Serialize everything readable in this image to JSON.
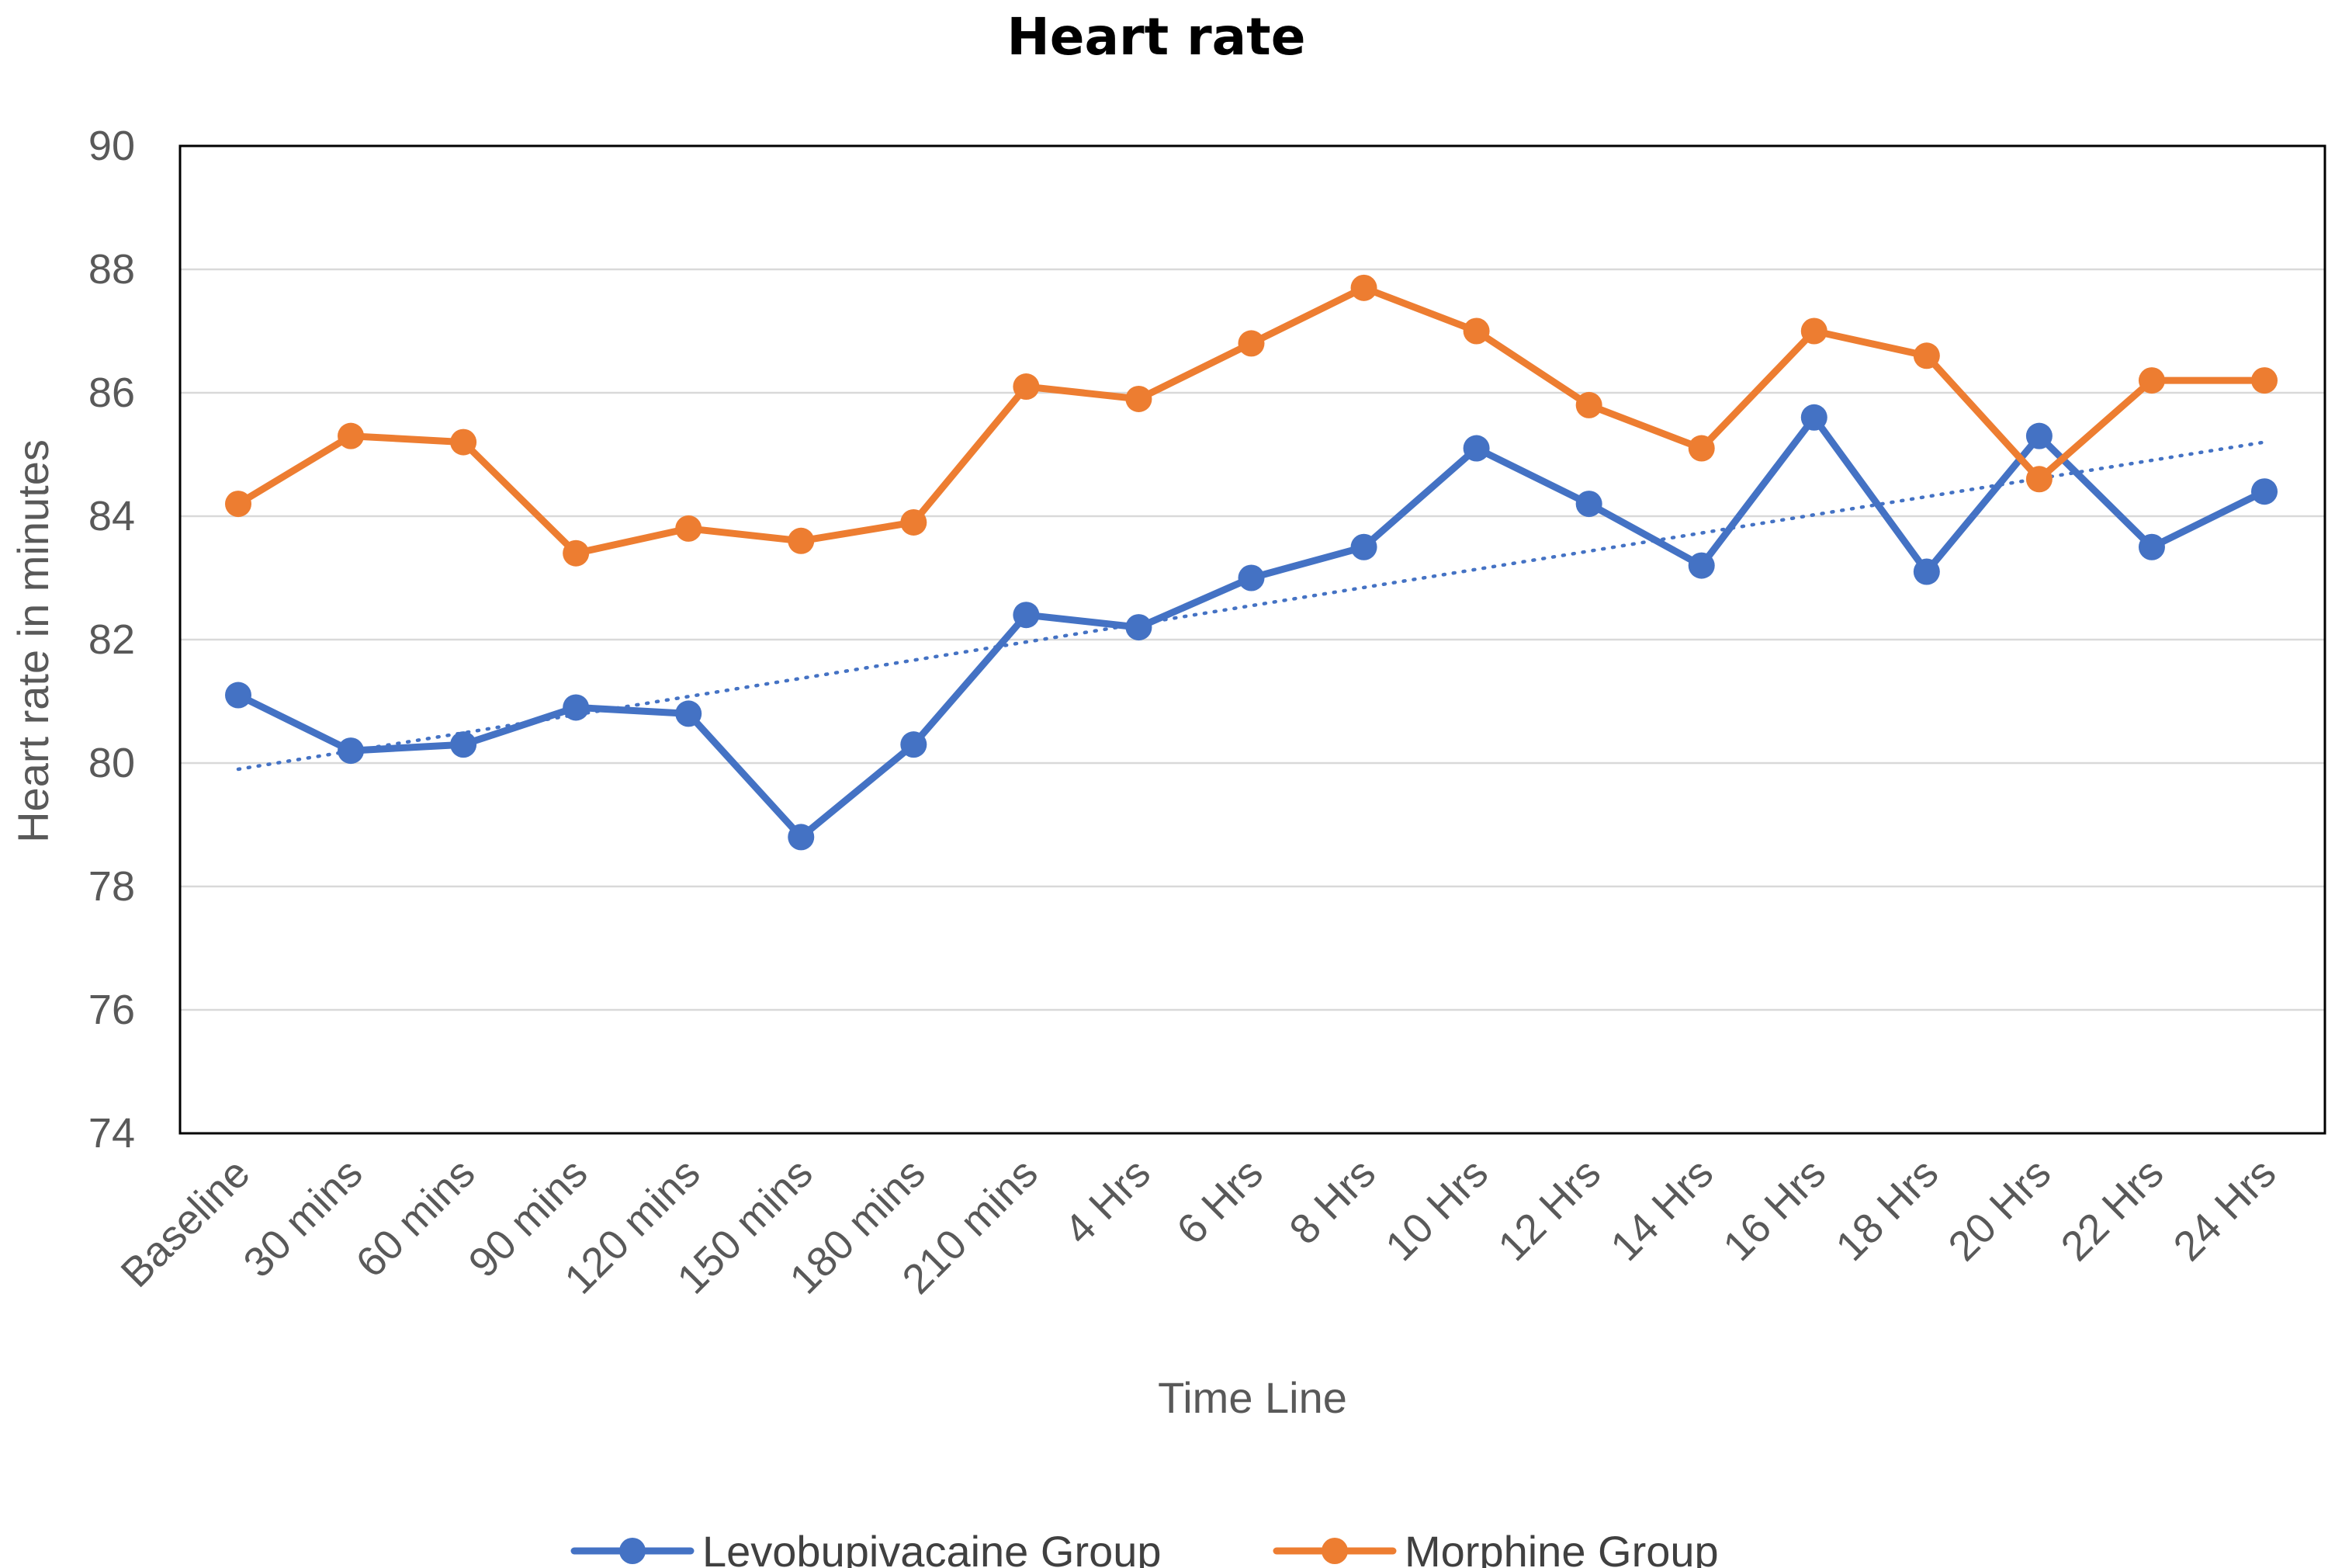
{
  "chart_data": {
    "type": "line",
    "title": "Heart rate",
    "xlabel": "Time Line",
    "ylabel": "Heart rate in minutes",
    "ylim": [
      74,
      90
    ],
    "ytick_step": 2,
    "yticks": [
      "74",
      "76",
      "78",
      "80",
      "82",
      "84",
      "86",
      "88",
      "90"
    ],
    "grid": true,
    "legend_position": "bottom",
    "categories": [
      "Baseline",
      "30 mins",
      "60 mins",
      "90 mins",
      "120 mins",
      "150 mins",
      "180 mins",
      "210 mins",
      "4 Hrs",
      "6 Hrs",
      "8 Hrs",
      "10 Hrs",
      "12 Hrs",
      "14 Hrs",
      "16 Hrs",
      "18 Hrs",
      "20 Hrs",
      "22 Hrs",
      "24 Hrs"
    ],
    "series": [
      {
        "name": "Levobupivacaine Group",
        "color": "#4472C4",
        "values": [
          81.1,
          80.2,
          80.3,
          80.9,
          80.8,
          78.8,
          80.3,
          82.4,
          82.2,
          83.0,
          83.5,
          85.1,
          84.2,
          83.2,
          85.6,
          83.1,
          85.3,
          83.5,
          84.4
        ]
      },
      {
        "name": "Morphine Group",
        "color": "#ED7D31",
        "values": [
          84.2,
          85.3,
          85.2,
          83.4,
          83.8,
          83.6,
          83.9,
          86.1,
          85.9,
          86.8,
          87.7,
          87.0,
          85.8,
          85.1,
          87.0,
          86.6,
          84.6,
          86.2,
          86.2
        ]
      }
    ],
    "trendline": {
      "series": "Levobupivacaine Group",
      "type": "linear",
      "style": "dotted",
      "color": "#4472C4",
      "start": 79.9,
      "end": 85.2
    }
  }
}
